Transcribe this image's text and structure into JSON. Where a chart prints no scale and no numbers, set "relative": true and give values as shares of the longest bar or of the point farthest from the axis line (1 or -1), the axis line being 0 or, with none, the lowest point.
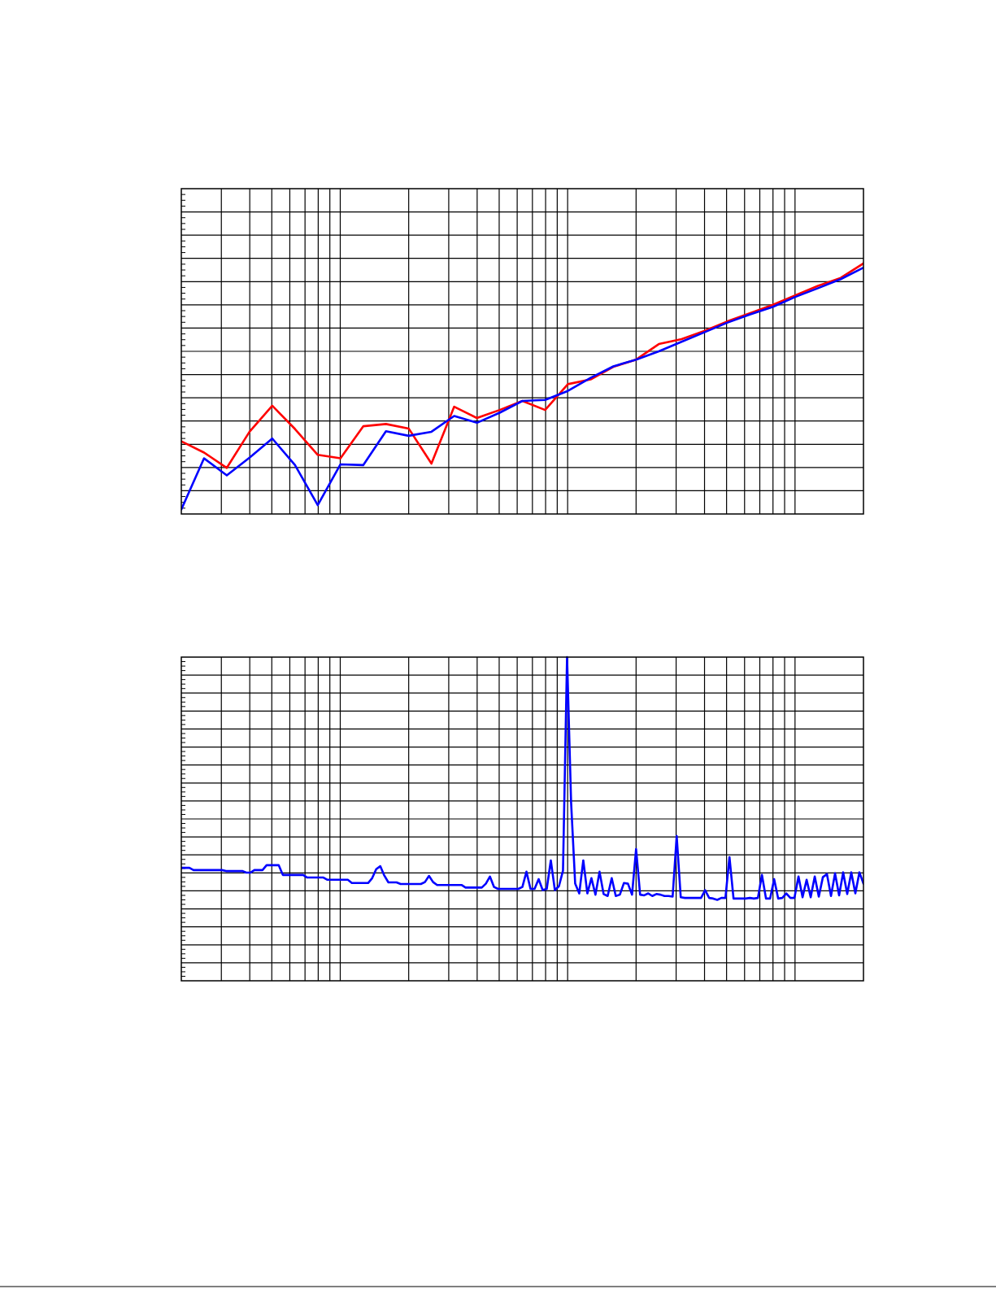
{
  "chart_data": [
    {
      "type": "line",
      "relative": true,
      "grid": true,
      "categories": [
        null,
        null,
        null,
        null,
        null,
        null,
        null,
        null,
        null,
        null,
        null,
        null,
        null,
        null,
        null,
        null,
        null,
        null,
        null,
        null,
        null,
        null,
        null,
        null,
        null,
        null,
        null,
        null,
        null,
        null,
        null
      ],
      "series": [
        {
          "color": "#ff0000",
          "values": [
            0.29,
            0.245,
            0.184,
            0.328,
            0.432,
            0.339,
            0.236,
            0.222,
            0.35,
            0.359,
            0.341,
            0.201,
            0.428,
            0.383,
            0.415,
            0.451,
            0.415,
            0.518,
            0.537,
            0.587,
            0.616,
            0.678,
            0.698,
            0.73,
            0.768,
            0.801,
            0.834,
            0.872,
            0.91,
            0.942,
            1
          ]
        },
        {
          "color": "#0000ff",
          "values": [
            0.018,
            0.222,
            0.154,
            0.225,
            0.301,
            0.195,
            0.035,
            0.198,
            0.195,
            0.33,
            0.312,
            0.328,
            0.391,
            0.364,
            0.404,
            0.451,
            0.455,
            0.491,
            0.543,
            0.589,
            0.616,
            0.649,
            0.687,
            0.725,
            0.763,
            0.796,
            0.826,
            0.866,
            0.901,
            0.937,
            0.983
          ]
        }
      ]
    },
    {
      "type": "line",
      "relative": true,
      "grid": true,
      "categories": [
        null,
        null,
        null,
        null,
        null,
        null,
        null,
        null,
        null,
        null,
        null,
        null,
        null,
        null,
        null,
        null,
        null,
        null,
        null,
        null,
        null,
        null,
        null,
        null,
        null,
        null,
        null,
        null,
        null,
        null,
        null,
        null,
        null,
        null,
        null,
        null,
        null,
        null,
        null,
        null,
        null,
        null,
        null,
        null,
        null,
        null,
        null,
        null,
        null,
        null,
        null,
        null,
        null,
        null,
        null,
        null,
        null,
        null,
        null,
        null,
        null,
        null,
        null,
        null,
        null,
        null,
        null,
        null,
        null,
        null,
        null,
        null,
        null,
        null,
        null,
        null,
        null,
        null,
        null,
        null,
        null,
        null,
        null,
        null,
        null,
        null,
        null,
        null,
        null,
        null,
        null,
        null,
        null,
        null,
        null,
        null,
        null,
        null,
        null,
        null,
        null,
        null,
        null,
        null,
        null,
        null,
        null,
        null,
        null,
        null,
        null,
        null,
        null,
        null,
        null,
        null,
        null,
        null,
        null,
        null,
        null,
        null,
        null,
        null,
        null,
        null,
        null,
        null,
        null,
        null,
        null,
        null,
        null,
        null,
        null,
        null,
        null,
        null,
        null,
        null,
        null,
        null,
        null,
        null,
        null,
        null,
        null,
        null,
        null,
        null,
        null,
        null,
        null,
        null,
        null,
        null,
        null,
        null,
        null,
        null,
        null,
        null,
        null,
        null,
        null,
        null,
        null,
        null,
        null
      ],
      "series": [
        {
          "color": "#0000ff",
          "values": [
            0.349,
            0.349,
            0.349,
            0.342,
            0.342,
            0.342,
            0.342,
            0.342,
            0.342,
            0.342,
            0.342,
            0.339,
            0.339,
            0.339,
            0.339,
            0.339,
            0.334,
            0.334,
            0.342,
            0.342,
            0.342,
            0.357,
            0.357,
            0.357,
            0.357,
            0.327,
            0.327,
            0.327,
            0.327,
            0.327,
            0.327,
            0.319,
            0.319,
            0.319,
            0.319,
            0.319,
            0.312,
            0.312,
            0.312,
            0.312,
            0.312,
            0.312,
            0.302,
            0.302,
            0.302,
            0.302,
            0.302,
            0.317,
            0.345,
            0.354,
            0.325,
            0.304,
            0.304,
            0.304,
            0.299,
            0.299,
            0.299,
            0.299,
            0.299,
            0.299,
            0.305,
            0.324,
            0.305,
            0.296,
            0.296,
            0.296,
            0.296,
            0.296,
            0.296,
            0.296,
            0.288,
            0.288,
            0.288,
            0.288,
            0.288,
            0.3,
            0.322,
            0.29,
            0.284,
            0.284,
            0.284,
            0.284,
            0.284,
            0.284,
            0.29,
            0.337,
            0.284,
            0.284,
            0.314,
            0.28,
            0.284,
            0.372,
            0.28,
            0.292,
            0.34,
            1,
            0.55,
            0.3,
            0.27,
            0.372,
            0.27,
            0.317,
            0.266,
            0.337,
            0.268,
            0.262,
            0.317,
            0.262,
            0.266,
            0.302,
            0.3,
            0.266,
            0.407,
            0.266,
            0.264,
            0.27,
            0.262,
            0.268,
            0.266,
            0.262,
            0.262,
            0.26,
            0.447,
            0.258,
            0.256,
            0.256,
            0.256,
            0.256,
            0.256,
            0.28,
            0.256,
            0.254,
            0.25,
            0.256,
            0.256,
            0.382,
            0.254,
            0.254,
            0.254,
            0.254,
            0.256,
            0.254,
            0.256,
            0.327,
            0.254,
            0.254,
            0.314,
            0.254,
            0.256,
            0.27,
            0.256,
            0.256,
            0.322,
            0.258,
            0.312,
            0.258,
            0.322,
            0.26,
            0.32,
            0.33,
            0.262,
            0.332,
            0.264,
            0.335,
            0.268,
            0.335,
            0.27,
            0.335,
            0.3
          ]
        }
      ]
    }
  ]
}
